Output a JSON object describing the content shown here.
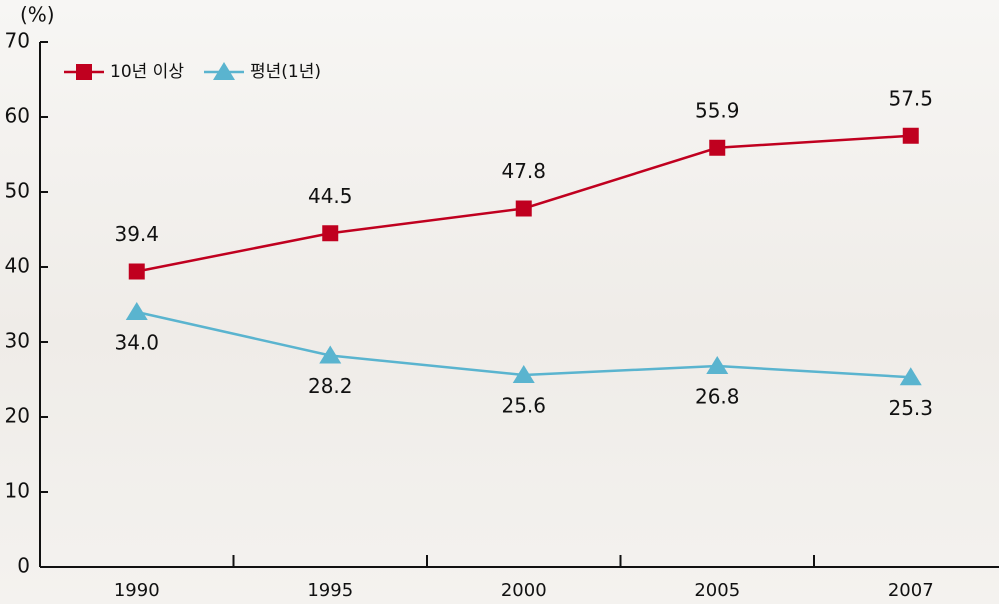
{
  "chart_data": {
    "type": "line",
    "y_unit": "(%)",
    "categories": [
      "1990",
      "1995",
      "2000",
      "2005",
      "2007"
    ],
    "series": [
      {
        "name": "10년 이상",
        "color": "#c0001f",
        "marker": "square",
        "label_side": "above",
        "values": [
          39.4,
          44.5,
          47.8,
          55.9,
          57.5
        ]
      },
      {
        "name": "평년(1년)",
        "color": "#5ab4cf",
        "marker": "triangle",
        "label_side": "below",
        "values": [
          34.0,
          28.2,
          25.6,
          26.8,
          25.3
        ]
      }
    ],
    "value_labels": [
      [
        "39.4",
        "44.5",
        "47.8",
        "55.9",
        "57.5"
      ],
      [
        "34.0",
        "28.2",
        "25.6",
        "26.8",
        "25.3"
      ]
    ],
    "ylim": [
      0,
      70
    ],
    "yticks": [
      0,
      10,
      20,
      30,
      40,
      50,
      60,
      70
    ],
    "grid": false,
    "legend": "top-left"
  }
}
